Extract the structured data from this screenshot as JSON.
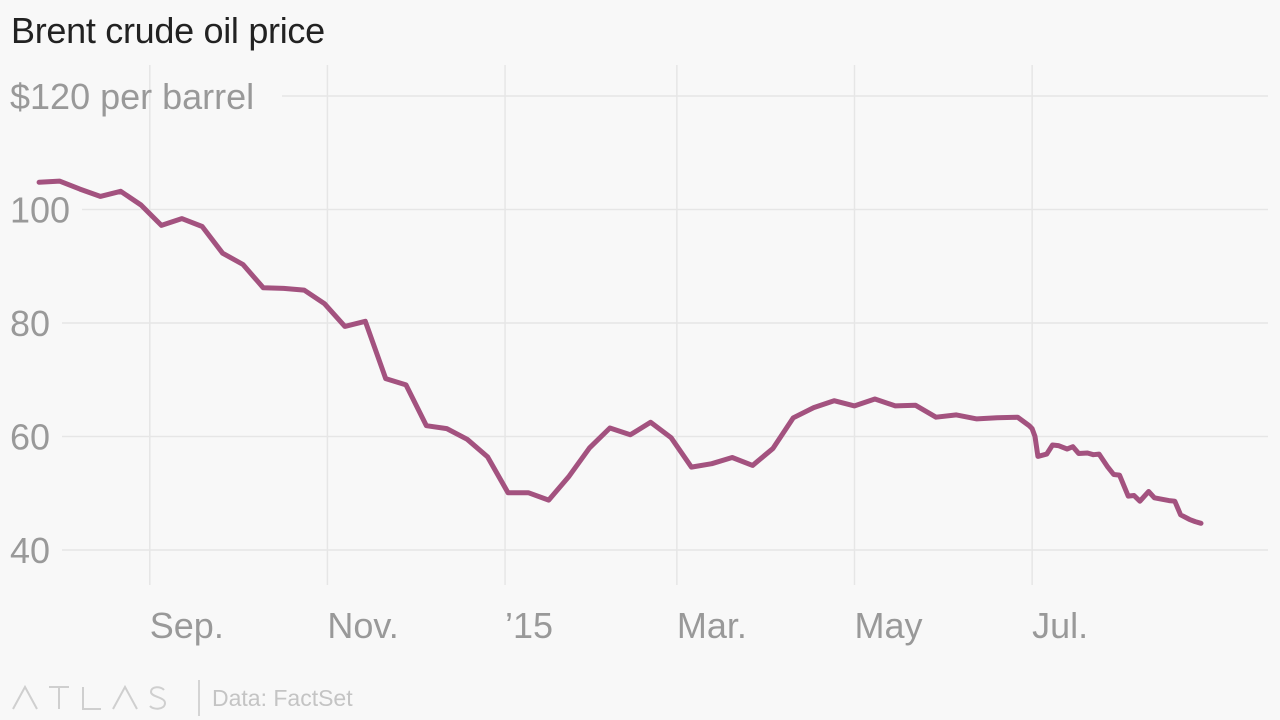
{
  "colors": {
    "line": "#a3527f"
  },
  "chart_data": {
    "type": "line",
    "title": "Brent crude oil price",
    "ylabel": "",
    "y_unit_label": "$120 per barrel",
    "ylim": [
      40,
      120
    ],
    "yticks": [
      40,
      60,
      80,
      100,
      120
    ],
    "xlim": [
      "2014-07-15",
      "2015-09-20"
    ],
    "xticks": [
      {
        "date": "2014-09-01",
        "label": "Sep."
      },
      {
        "date": "2014-11-01",
        "label": "Nov."
      },
      {
        "date": "2015-01-01",
        "label": "’15"
      },
      {
        "date": "2015-03-01",
        "label": "Mar."
      },
      {
        "date": "2015-05-01",
        "label": "May"
      },
      {
        "date": "2015-07-01",
        "label": "Jul."
      }
    ],
    "grid": true,
    "series": [
      {
        "x": [
          "2014-07-25",
          "2014-08-01",
          "2014-08-08",
          "2014-08-15",
          "2014-08-22",
          "2014-08-29",
          "2014-09-05",
          "2014-09-12",
          "2014-09-19",
          "2014-09-26",
          "2014-10-03",
          "2014-10-10",
          "2014-10-17",
          "2014-10-24",
          "2014-10-31",
          "2014-11-07",
          "2014-11-14",
          "2014-11-21",
          "2014-11-28",
          "2014-12-05",
          "2014-12-12",
          "2014-12-19",
          "2014-12-26",
          "2015-01-02",
          "2015-01-09",
          "2015-01-16",
          "2015-01-23",
          "2015-01-30",
          "2015-02-06",
          "2015-02-13",
          "2015-02-20",
          "2015-02-27",
          "2015-03-06",
          "2015-03-13",
          "2015-03-20",
          "2015-03-27",
          "2015-04-03",
          "2015-04-10",
          "2015-04-17",
          "2015-04-24",
          "2015-05-01",
          "2015-05-08",
          "2015-05-15",
          "2015-05-22",
          "2015-05-29",
          "2015-06-05",
          "2015-06-12",
          "2015-06-19",
          "2015-06-26",
          "2015-06-30",
          "2015-07-01",
          "2015-07-02",
          "2015-07-03",
          "2015-07-06",
          "2015-07-08",
          "2015-07-10",
          "2015-07-13",
          "2015-07-15",
          "2015-07-17",
          "2015-07-20",
          "2015-07-22",
          "2015-07-24",
          "2015-07-27",
          "2015-07-29",
          "2015-07-31",
          "2015-08-03",
          "2015-08-05",
          "2015-08-07",
          "2015-08-10",
          "2015-08-12",
          "2015-08-14",
          "2015-08-17",
          "2015-08-19",
          "2015-08-21",
          "2015-08-24",
          "2015-08-26",
          "2015-08-28"
        ],
        "values": [
          104.8,
          105.0,
          103.6,
          102.3,
          103.2,
          100.8,
          97.2,
          98.4,
          97.0,
          92.3,
          90.3,
          86.2,
          86.1,
          85.8,
          83.4,
          79.4,
          80.3,
          70.2,
          69.1,
          61.9,
          61.4,
          59.5,
          56.4,
          50.1,
          50.1,
          48.8,
          53.0,
          58.0,
          61.5,
          60.3,
          62.5,
          59.8,
          54.6,
          55.2,
          56.3,
          54.9,
          57.9,
          63.3,
          65.1,
          66.3,
          65.4,
          66.6,
          65.4,
          65.5,
          63.4,
          63.8,
          63.1,
          63.3,
          63.4,
          61.9,
          61.4,
          60.0,
          56.5,
          56.9,
          58.5,
          58.4,
          57.8,
          58.2,
          57.0,
          57.1,
          56.8,
          56.9,
          54.6,
          53.3,
          53.2,
          49.5,
          49.6,
          48.6,
          50.3,
          49.2,
          49.0,
          48.7,
          48.6,
          46.2,
          45.4,
          45.0,
          44.7
        ]
      }
    ]
  },
  "footer": {
    "logo_name": "atlas-logo",
    "source": "Data: FactSet"
  }
}
